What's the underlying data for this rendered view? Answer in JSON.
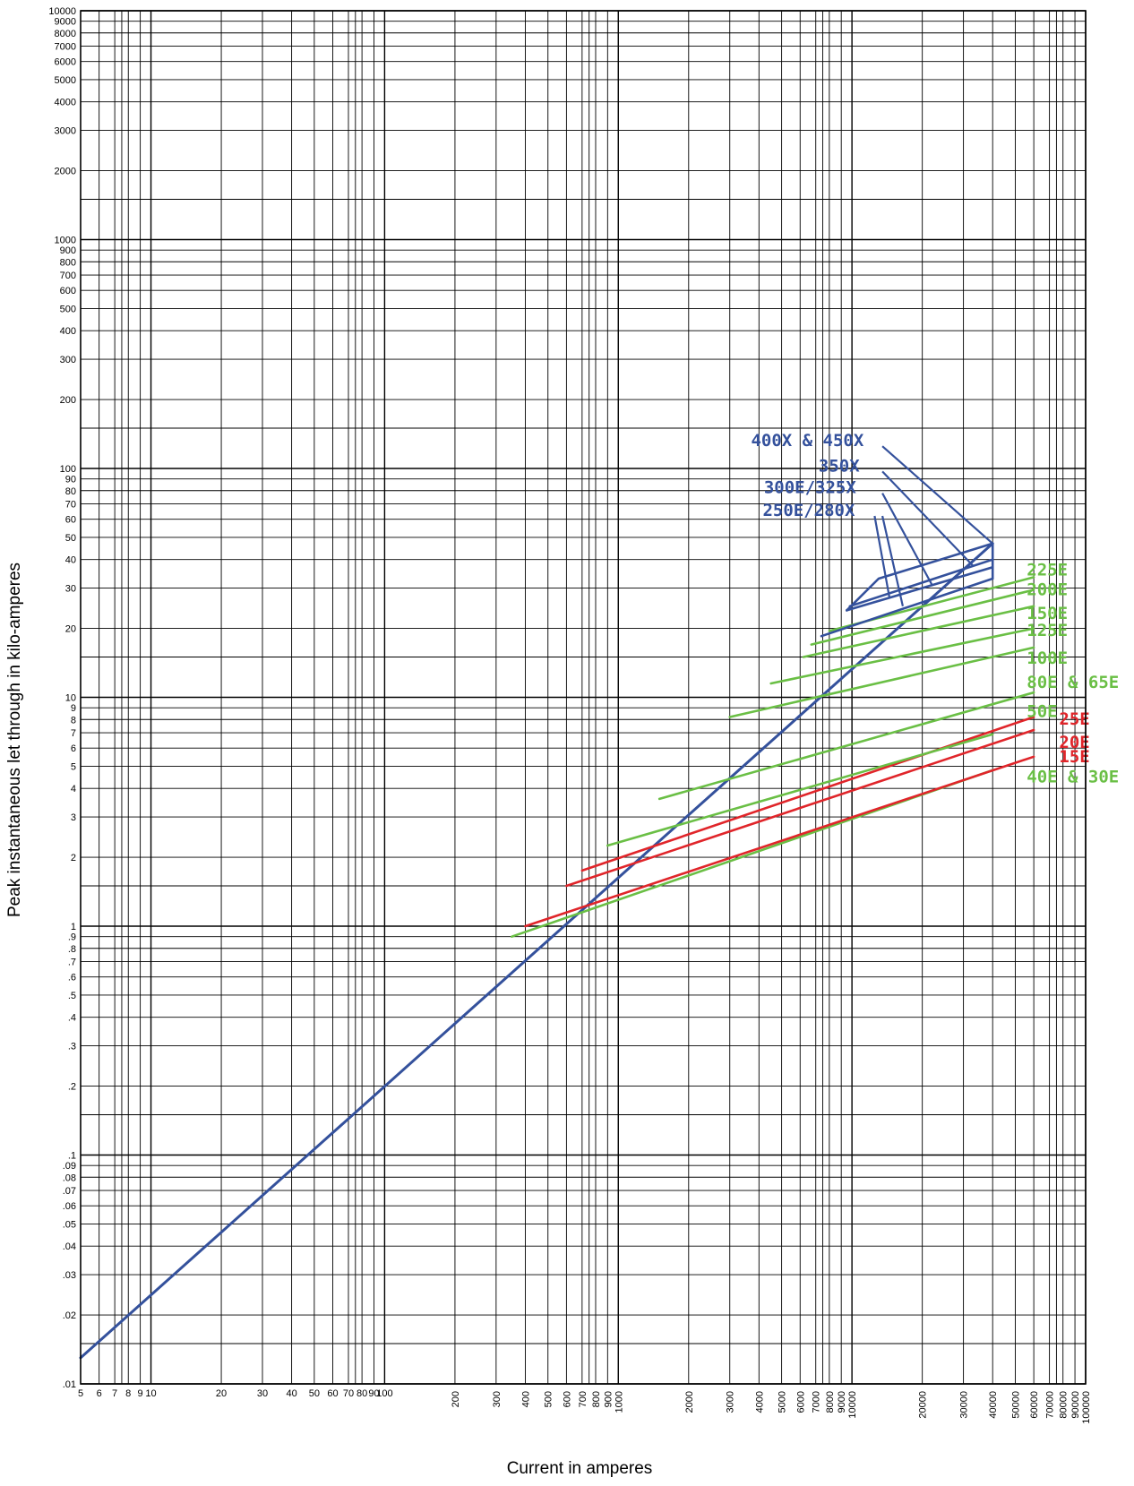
{
  "chart_data": {
    "type": "line",
    "title": "",
    "xlabel": "Current in amperes",
    "ylabel": "Peak instantaneous let through in kilo-amperes",
    "xscale": "log",
    "yscale": "log",
    "xlim": [
      5,
      100000
    ],
    "ylim": [
      0.01,
      10000
    ],
    "grid": true,
    "legend": "none (inline labels at right)",
    "colors": {
      "blue": "#34519c",
      "green": "#6abf45",
      "red": "#e0252a"
    },
    "x_ticks": [
      {
        "v": 5,
        "t": "5"
      },
      {
        "v": 6,
        "t": "6"
      },
      {
        "v": 7,
        "t": "7"
      },
      {
        "v": 8,
        "t": "8"
      },
      {
        "v": 9,
        "t": "9"
      },
      {
        "v": 10,
        "t": "10"
      },
      {
        "v": 20,
        "t": "20"
      },
      {
        "v": 30,
        "t": "30"
      },
      {
        "v": 40,
        "t": "40"
      },
      {
        "v": 50,
        "t": "50"
      },
      {
        "v": 60,
        "t": "60"
      },
      {
        "v": 70,
        "t": "70"
      },
      {
        "v": 80,
        "t": "80"
      },
      {
        "v": 90,
        "t": "90"
      },
      {
        "v": 100,
        "t": "100"
      },
      {
        "v": 200,
        "t": "200"
      },
      {
        "v": 300,
        "t": "300"
      },
      {
        "v": 400,
        "t": "400"
      },
      {
        "v": 500,
        "t": "500"
      },
      {
        "v": 600,
        "t": "600"
      },
      {
        "v": 700,
        "t": "700"
      },
      {
        "v": 800,
        "t": "800"
      },
      {
        "v": 900,
        "t": "900"
      },
      {
        "v": 1000,
        "t": "1000"
      },
      {
        "v": 2000,
        "t": "2000"
      },
      {
        "v": 3000,
        "t": "3000"
      },
      {
        "v": 4000,
        "t": "4000"
      },
      {
        "v": 5000,
        "t": "5000"
      },
      {
        "v": 6000,
        "t": "6000"
      },
      {
        "v": 7000,
        "t": "7000"
      },
      {
        "v": 8000,
        "t": "8000"
      },
      {
        "v": 9000,
        "t": "9000"
      },
      {
        "v": 10000,
        "t": "10000"
      },
      {
        "v": 20000,
        "t": "20000"
      },
      {
        "v": 30000,
        "t": "30000"
      },
      {
        "v": 40000,
        "t": "40000"
      },
      {
        "v": 50000,
        "t": "50000"
      },
      {
        "v": 60000,
        "t": "60000"
      },
      {
        "v": 70000,
        "t": "70000"
      },
      {
        "v": 80000,
        "t": "80000"
      },
      {
        "v": 90000,
        "t": "90000"
      },
      {
        "v": 100000,
        "t": "100000"
      }
    ],
    "y_ticks": [
      {
        "v": 0.01,
        "t": ".01"
      },
      {
        "v": 0.02,
        "t": ".02"
      },
      {
        "v": 0.03,
        "t": ".03"
      },
      {
        "v": 0.04,
        "t": ".04"
      },
      {
        "v": 0.05,
        "t": ".05"
      },
      {
        "v": 0.06,
        "t": ".06"
      },
      {
        "v": 0.07,
        "t": ".07"
      },
      {
        "v": 0.08,
        "t": ".08"
      },
      {
        "v": 0.09,
        "t": ".09"
      },
      {
        "v": 0.1,
        "t": ".1"
      },
      {
        "v": 0.2,
        "t": ".2"
      },
      {
        "v": 0.3,
        "t": ".3"
      },
      {
        "v": 0.4,
        "t": ".4"
      },
      {
        "v": 0.5,
        "t": ".5"
      },
      {
        "v": 0.6,
        "t": ".6"
      },
      {
        "v": 0.7,
        "t": ".7"
      },
      {
        "v": 0.8,
        "t": ".8"
      },
      {
        "v": 0.9,
        "t": ".9"
      },
      {
        "v": 1,
        "t": "1"
      },
      {
        "v": 2,
        "t": "2"
      },
      {
        "v": 3,
        "t": "3"
      },
      {
        "v": 4,
        "t": "4"
      },
      {
        "v": 5,
        "t": "5"
      },
      {
        "v": 6,
        "t": "6"
      },
      {
        "v": 7,
        "t": "7"
      },
      {
        "v": 8,
        "t": "8"
      },
      {
        "v": 9,
        "t": "9"
      },
      {
        "v": 10,
        "t": "10"
      },
      {
        "v": 20,
        "t": "20"
      },
      {
        "v": 30,
        "t": "30"
      },
      {
        "v": 40,
        "t": "40"
      },
      {
        "v": 50,
        "t": "50"
      },
      {
        "v": 60,
        "t": "60"
      },
      {
        "v": 70,
        "t": "70"
      },
      {
        "v": 80,
        "t": "80"
      },
      {
        "v": 90,
        "t": "90"
      },
      {
        "v": 100,
        "t": "100"
      },
      {
        "v": 200,
        "t": "200"
      },
      {
        "v": 300,
        "t": "300"
      },
      {
        "v": 400,
        "t": "400"
      },
      {
        "v": 500,
        "t": "500"
      },
      {
        "v": 600,
        "t": "600"
      },
      {
        "v": 700,
        "t": "700"
      },
      {
        "v": 800,
        "t": "800"
      },
      {
        "v": 900,
        "t": "900"
      },
      {
        "v": 1000,
        "t": "1000"
      },
      {
        "v": 2000,
        "t": "2000"
      },
      {
        "v": 3000,
        "t": "3000"
      },
      {
        "v": 4000,
        "t": "4000"
      },
      {
        "v": 5000,
        "t": "5000"
      },
      {
        "v": 6000,
        "t": "6000"
      },
      {
        "v": 7000,
        "t": "7000"
      },
      {
        "v": 8000,
        "t": "8000"
      },
      {
        "v": 9000,
        "t": "9000"
      },
      {
        "v": 10000,
        "t": "10000"
      }
    ],
    "series": [
      {
        "name": "",
        "color": "blue",
        "x": [
          5,
          40000
        ],
        "y": [
          0.013,
          47
        ]
      },
      {
        "name": "",
        "color": "green",
        "x": [
          350,
          40000
        ],
        "y": [
          0.9,
          4.8
        ]
      },
      {
        "name": "",
        "color": "red",
        "x": [
          400,
          60000
        ],
        "y": [
          1.0,
          5.5
        ]
      },
      {
        "name": "",
        "color": "red",
        "x": [
          600,
          60000
        ],
        "y": [
          1.5,
          7.2
        ]
      },
      {
        "name": "",
        "color": "red",
        "x": [
          700,
          60000
        ],
        "y": [
          1.75,
          8.2
        ]
      },
      {
        "name": "",
        "color": "green",
        "x": [
          900,
          40000
        ],
        "y": [
          2.25,
          6.9
        ]
      },
      {
        "name": "",
        "color": "green",
        "x": [
          1500,
          60000
        ],
        "y": [
          3.6,
          10.5
        ]
      },
      {
        "name": "",
        "color": "green",
        "x": [
          3000,
          60000
        ],
        "y": [
          8.2,
          16.5
        ]
      },
      {
        "name": "",
        "color": "green",
        "x": [
          4500,
          60000
        ],
        "y": [
          11.5,
          20
        ]
      },
      {
        "name": "",
        "color": "green",
        "x": [
          6200,
          60000
        ],
        "y": [
          15,
          25
        ]
      },
      {
        "name": "",
        "color": "green",
        "x": [
          6700,
          60000
        ],
        "y": [
          17,
          29.5
        ]
      },
      {
        "name": "",
        "color": "green",
        "x": [
          8000,
          60000
        ],
        "y": [
          19.5,
          33.5
        ]
      },
      {
        "name": "",
        "color": "blue",
        "x": [
          7400,
          40000
        ],
        "y": [
          18.5,
          33
        ]
      },
      {
        "name": "",
        "color": "blue",
        "x": [
          9500,
          40000
        ],
        "y": [
          24,
          37
        ]
      },
      {
        "name": "",
        "color": "blue",
        "x": [
          9800,
          40000
        ],
        "y": [
          25,
          40
        ]
      },
      {
        "name": "",
        "color": "blue",
        "x": [
          9500,
          13000,
          40000
        ],
        "y": [
          24,
          33,
          47
        ]
      },
      {
        "name": "",
        "color": "blue",
        "x": [
          40000,
          40000
        ],
        "y": [
          33,
          47
        ]
      }
    ],
    "labels": [
      {
        "text": "400X & 450X",
        "color": "blue",
        "x": 3700,
        "y": 125
      },
      {
        "text": "350X",
        "color": "blue",
        "x": 7200,
        "y": 97
      },
      {
        "text": "300E/325X",
        "color": "blue",
        "x": 4200,
        "y": 78
      },
      {
        "text": "250E/280X",
        "color": "blue",
        "x": 4150,
        "y": 62
      },
      {
        "text": "225E",
        "color": "green",
        "x": 56000,
        "y": 34
      },
      {
        "text": "200E",
        "color": "green",
        "x": 56000,
        "y": 28
      },
      {
        "text": "150E",
        "color": "green",
        "x": 56000,
        "y": 22
      },
      {
        "text": "125E",
        "color": "green",
        "x": 56000,
        "y": 18.5
      },
      {
        "text": "100E",
        "color": "green",
        "x": 56000,
        "y": 14
      },
      {
        "text": "80E & 65E",
        "color": "green",
        "x": 56000,
        "y": 11
      },
      {
        "text": "50E",
        "color": "green",
        "x": 56000,
        "y": 8.2
      },
      {
        "text": "25E",
        "color": "red",
        "x": 77000,
        "y": 7.6
      },
      {
        "text": "20E",
        "color": "red",
        "x": 77000,
        "y": 6.0
      },
      {
        "text": "15E",
        "color": "red",
        "x": 77000,
        "y": 5.2
      },
      {
        "text": "40E & 30E",
        "color": "green",
        "x": 56000,
        "y": 4.25
      }
    ],
    "leaders": [
      {
        "color": "blue",
        "x": [
          13500,
          40000
        ],
        "y": [
          125,
          47
        ]
      },
      {
        "color": "blue",
        "x": [
          13500,
          33000
        ],
        "y": [
          97,
          37.5
        ]
      },
      {
        "color": "blue",
        "x": [
          13500,
          22000
        ],
        "y": [
          78,
          31
        ]
      },
      {
        "color": "blue",
        "x": [
          13500,
          16500
        ],
        "y": [
          62,
          25
        ]
      },
      {
        "color": "blue",
        "x": [
          12500,
          14500
        ],
        "y": [
          62,
          27
        ]
      }
    ]
  }
}
